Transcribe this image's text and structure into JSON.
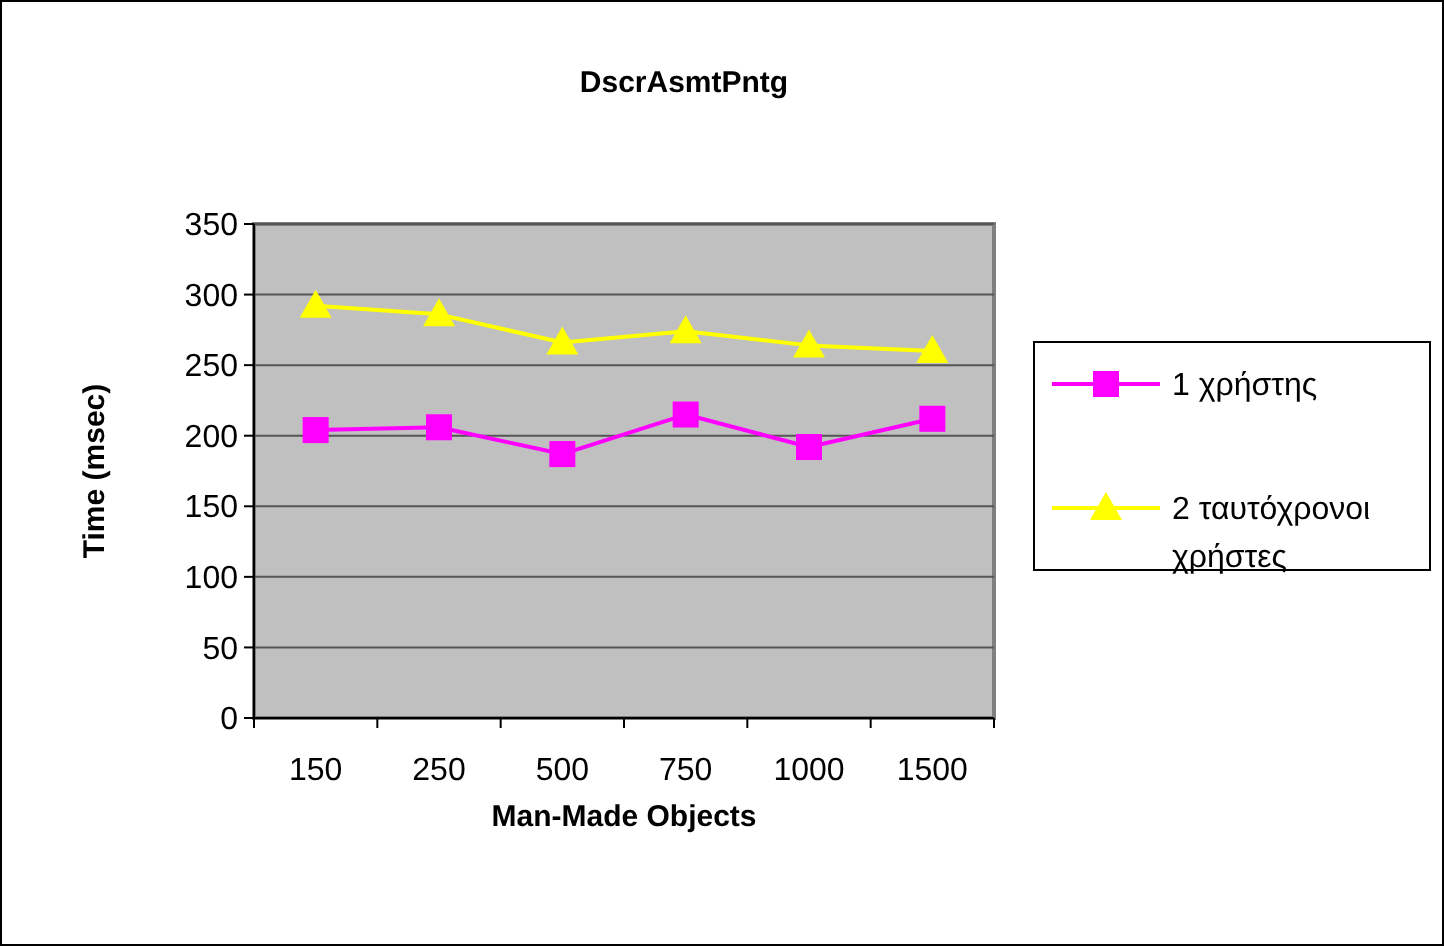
{
  "chart_data": {
    "type": "line",
    "title": "DscrAsmtPntg",
    "xlabel": "Man-Made Objects",
    "ylabel": "Time (msec)",
    "categories": [
      "150",
      "250",
      "500",
      "750",
      "1000",
      "1500"
    ],
    "series": [
      {
        "name": "1 χρήστης",
        "color": "#ff00ff",
        "marker": "square",
        "values": [
          204,
          206,
          187,
          215,
          192,
          212
        ]
      },
      {
        "name": "2 ταυτόχρονοι χρήστες",
        "color": "#ffff00",
        "marker": "triangle",
        "values": [
          292,
          286,
          266,
          274,
          264,
          260
        ]
      }
    ],
    "ylim": [
      0,
      350
    ],
    "yticks": [
      0,
      50,
      100,
      150,
      200,
      250,
      300,
      350
    ],
    "grid": "y",
    "legend": "right"
  }
}
